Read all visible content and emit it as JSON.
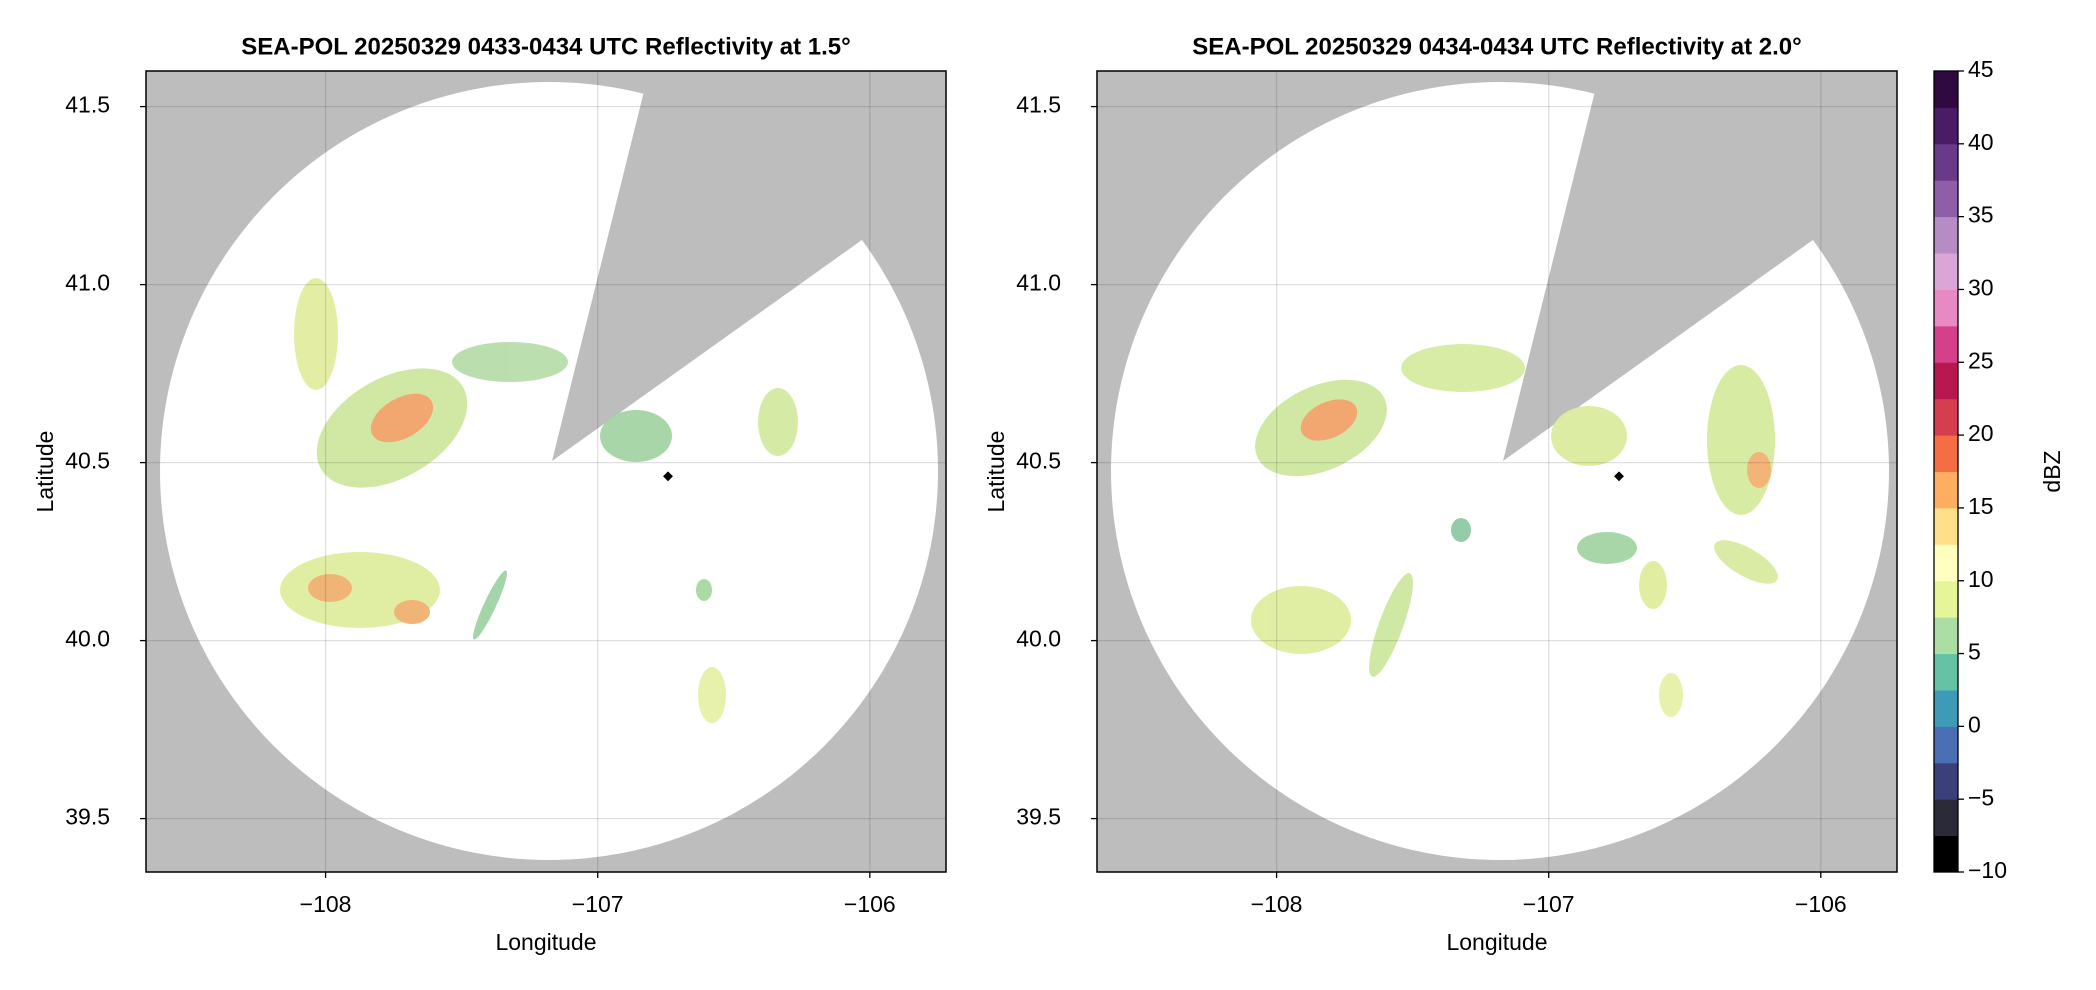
{
  "chart_data": [
    {
      "type": "radar",
      "title": "SEA-POL 20250329 0433-0434 UTC Reflectivity at 1.5°",
      "xlabel": "Longitude",
      "ylabel": "Latitude",
      "xlim": [
        -108.66,
        -105.72
      ],
      "ylim": [
        39.35,
        41.6
      ],
      "xticks": [
        {
          "value": -108,
          "label": "−108"
        },
        {
          "value": -107,
          "label": "−107"
        },
        {
          "value": -106,
          "label": "−106"
        }
      ],
      "yticks": [
        {
          "value": 39.5,
          "label": "39.5"
        },
        {
          "value": 40.0,
          "label": "40.0"
        },
        {
          "value": 40.5,
          "label": "40.5"
        },
        {
          "value": 41.0,
          "label": "41.0"
        },
        {
          "value": 41.5,
          "label": "41.5"
        }
      ],
      "grid": true
    },
    {
      "type": "radar",
      "title": "SEA-POL 20250329 0434-0434 UTC Reflectivity at 2.0°",
      "xlabel": "Longitude",
      "ylabel": "Latitude",
      "xlim": [
        -108.66,
        -105.72
      ],
      "ylim": [
        39.35,
        41.6
      ],
      "xticks": [
        {
          "value": -108,
          "label": "−108"
        },
        {
          "value": -107,
          "label": "−107"
        },
        {
          "value": -106,
          "label": "−106"
        }
      ],
      "yticks": [
        {
          "value": 39.5,
          "label": "39.5"
        },
        {
          "value": 40.0,
          "label": "40.0"
        },
        {
          "value": 40.5,
          "label": "40.5"
        },
        {
          "value": 41.0,
          "label": "41.0"
        },
        {
          "value": 41.5,
          "label": "41.5"
        }
      ],
      "grid": true,
      "colorbar": {
        "label": "dBZ",
        "lim": [
          -10,
          45
        ],
        "ticks": [
          {
            "value": -10,
            "label": "−10"
          },
          {
            "value": -5,
            "label": "−5"
          },
          0,
          5,
          10,
          15,
          20,
          25,
          30,
          35,
          40,
          45
        ],
        "colors": [
          "#000000",
          "#2a2a38",
          "#3b3f7a",
          "#4a6fb5",
          "#3d9bb8",
          "#66c2a5",
          "#abdda4",
          "#e6f598",
          "#ffffbf",
          "#fee08b",
          "#fdae61",
          "#f46d43",
          "#d53e4f",
          "#b8174f",
          "#d6408a",
          "#e78ac3",
          "#d9a6d6",
          "#b68cc4",
          "#8e5ea8",
          "#6a3a8a",
          "#4a1c66",
          "#2e0a40"
        ]
      }
    }
  ]
}
